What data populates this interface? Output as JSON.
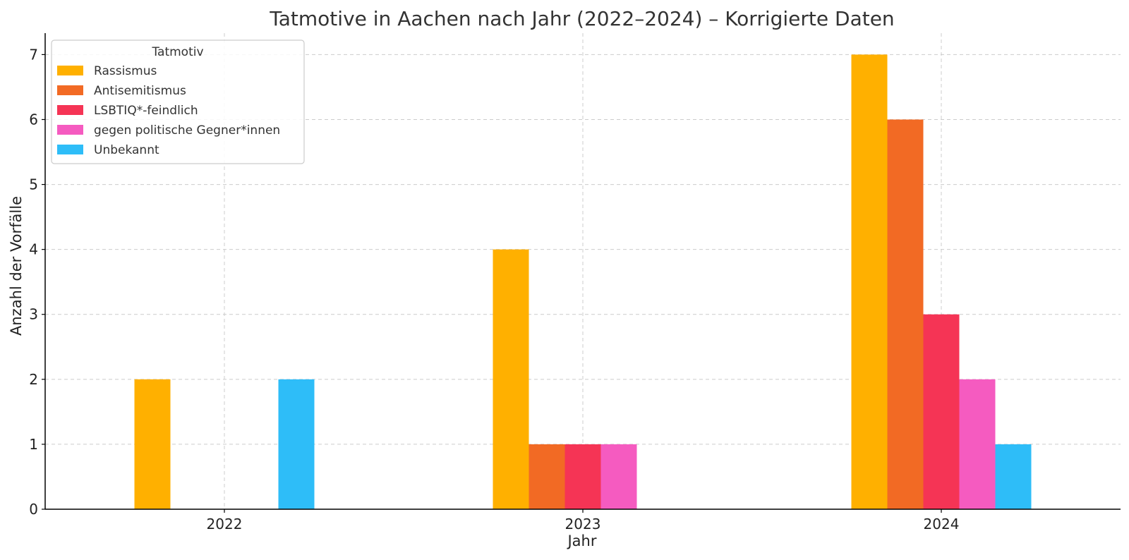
{
  "chart_data": {
    "type": "bar",
    "title": "Tatmotive in Aachen nach Jahr (2022–2024) – Korrigierte Daten",
    "xlabel": "Jahr",
    "ylabel": "Anzahl der Vorfälle",
    "categories": [
      "2022",
      "2023",
      "2024"
    ],
    "ylim": [
      0,
      7.33
    ],
    "yticks": [
      "0",
      "1",
      "2",
      "3",
      "4",
      "5",
      "6",
      "7"
    ],
    "grid": true,
    "legend": {
      "title": "Tatmotiv",
      "placement": "top-left"
    },
    "series": [
      {
        "name": "Rassismus",
        "color": "#FFB000",
        "values": [
          2,
          4,
          7
        ]
      },
      {
        "name": "Antisemitismus",
        "color": "#F26A24",
        "values": [
          0,
          1,
          6
        ]
      },
      {
        "name": "LSBTIQ*-feindlich",
        "color": "#F53455",
        "values": [
          0,
          1,
          3
        ]
      },
      {
        "name": "gegen politische Gegner*innen",
        "color": "#F55BC0",
        "values": [
          0,
          1,
          2
        ]
      },
      {
        "name": "Unbekannt",
        "color": "#2EBDF8",
        "values": [
          2,
          0,
          1
        ]
      }
    ]
  }
}
